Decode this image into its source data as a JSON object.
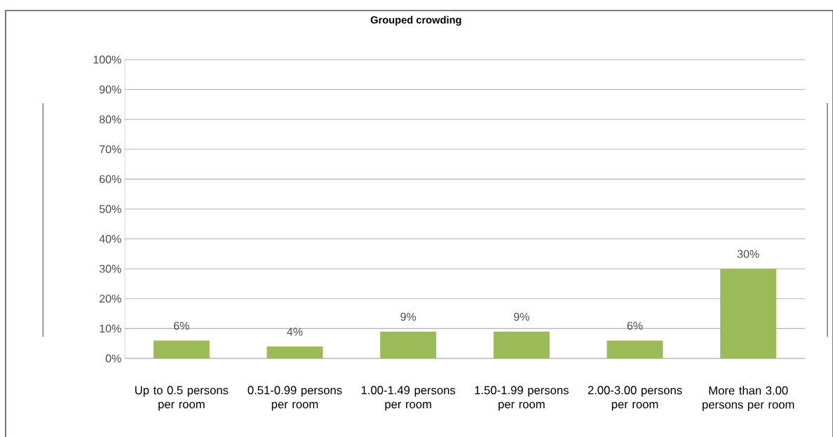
{
  "chart_data": {
    "type": "bar",
    "title": "Grouped crowding",
    "categories": [
      "Up to 0.5 persons per room",
      "0.51-0.99 persons per room",
      "1.00-1.49 persons per room",
      "1.50-1.99 persons per room",
      "2.00-3.00 persons per room",
      "More than 3.00 persons per room"
    ],
    "values": [
      6,
      4,
      9,
      9,
      6,
      30
    ],
    "value_labels": [
      "6%",
      "4%",
      "9%",
      "9%",
      "6%",
      "30%"
    ],
    "color": "#9bbb59",
    "ylim": [
      0,
      100
    ],
    "yticks": [
      {
        "value": 0,
        "label": "0%"
      },
      {
        "value": 10,
        "label": "10%"
      },
      {
        "value": 20,
        "label": "20%"
      },
      {
        "value": 30,
        "label": "30%"
      },
      {
        "value": 40,
        "label": "40%"
      },
      {
        "value": 50,
        "label": "50%"
      },
      {
        "value": 60,
        "label": "60%"
      },
      {
        "value": 70,
        "label": "70%"
      },
      {
        "value": 80,
        "label": "80%"
      },
      {
        "value": 90,
        "label": "90%"
      },
      {
        "value": 100,
        "label": "100%"
      }
    ],
    "grid": "y"
  }
}
